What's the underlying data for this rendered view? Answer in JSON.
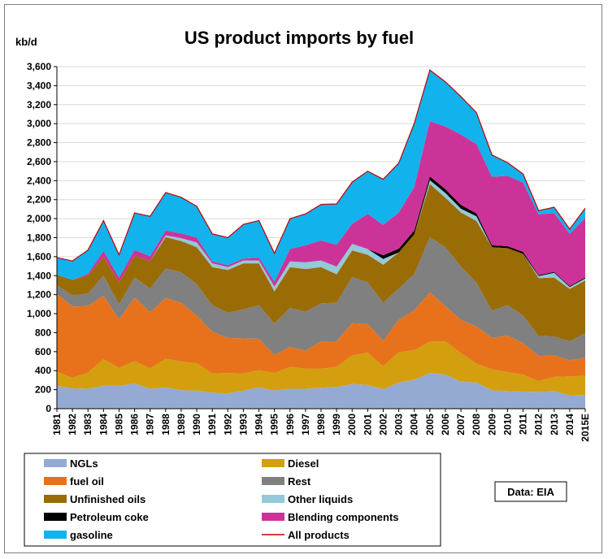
{
  "chart_data": {
    "type": "area",
    "title": "US product imports by fuel",
    "ylabel": "kb/d",
    "ylim": [
      0,
      3600
    ],
    "ytick_step": 200,
    "grid": true,
    "legend_position": "bottom",
    "source_note": "Data: EIA",
    "categories": [
      "1981",
      "1982",
      "1983",
      "1984",
      "1985",
      "1986",
      "1987",
      "1988",
      "1989",
      "1990",
      "1991",
      "1992",
      "1993",
      "1994",
      "1995",
      "1996",
      "1997",
      "1998",
      "1999",
      "2000",
      "2001",
      "2002",
      "2003",
      "2004",
      "2005",
      "2006",
      "2007",
      "2008",
      "2009",
      "2010",
      "2011",
      "2012",
      "2013",
      "2014",
      "2015E"
    ],
    "series": [
      {
        "name": "NGLs",
        "color": "#95aad3",
        "values": [
          240,
          215,
          210,
          240,
          240,
          265,
          210,
          225,
          195,
          190,
          170,
          160,
          190,
          225,
          190,
          210,
          210,
          220,
          230,
          260,
          250,
          205,
          275,
          305,
          375,
          360,
          285,
          275,
          195,
          185,
          180,
          175,
          185,
          140,
          145
        ]
      },
      {
        "name": "Diesel",
        "color": "#d39f0e",
        "values": [
          150,
          110,
          170,
          280,
          190,
          235,
          215,
          300,
          300,
          290,
          200,
          215,
          180,
          180,
          185,
          230,
          210,
          200,
          210,
          300,
          340,
          240,
          320,
          310,
          330,
          350,
          300,
          200,
          220,
          200,
          180,
          115,
          150,
          200,
          200
        ]
      },
      {
        "name": "fuel oil",
        "color": "#e8721c",
        "values": [
          820,
          750,
          700,
          670,
          510,
          670,
          590,
          640,
          620,
          500,
          440,
          370,
          370,
          330,
          190,
          210,
          190,
          290,
          270,
          340,
          300,
          270,
          340,
          420,
          520,
          370,
          350,
          390,
          330,
          385,
          330,
          265,
          225,
          170,
          190
        ]
      },
      {
        "name": "Rest",
        "color": "#808080",
        "values": [
          90,
          120,
          130,
          210,
          160,
          210,
          250,
          310,
          320,
          330,
          280,
          265,
          305,
          355,
          330,
          410,
          410,
          400,
          405,
          485,
          440,
          400,
          330,
          380,
          580,
          620,
          560,
          460,
          285,
          320,
          290,
          210,
          200,
          200,
          260
        ]
      },
      {
        "name": "Unfinished oils",
        "color": "#9a6c06",
        "values": [
          110,
          160,
          190,
          200,
          230,
          230,
          290,
          330,
          330,
          390,
          400,
          450,
          485,
          440,
          340,
          430,
          450,
          380,
          300,
          280,
          290,
          400,
          380,
          420,
          560,
          520,
          570,
          650,
          670,
          600,
          650,
          610,
          620,
          550,
          555
        ]
      },
      {
        "name": "Other liquids",
        "color": "#93c9d8",
        "values": [
          0,
          0,
          0,
          0,
          0,
          0,
          0,
          20,
          30,
          50,
          40,
          30,
          30,
          30,
          50,
          60,
          70,
          70,
          80,
          70,
          60,
          60,
          0,
          0,
          40,
          50,
          40,
          50,
          0,
          0,
          0,
          20,
          50,
          20,
          20
        ]
      },
      {
        "name": "Petroleum coke",
        "color": "#000000",
        "values": [
          0,
          0,
          0,
          0,
          0,
          0,
          0,
          0,
          0,
          0,
          0,
          0,
          0,
          0,
          0,
          0,
          0,
          0,
          0,
          0,
          0,
          40,
          40,
          40,
          40,
          40,
          40,
          30,
          20,
          20,
          20,
          10,
          10,
          10,
          10
        ]
      },
      {
        "name": "Blending components",
        "color": "#cc3399",
        "values": [
          0,
          0,
          20,
          60,
          50,
          60,
          50,
          50,
          50,
          50,
          20,
          20,
          20,
          30,
          50,
          130,
          180,
          210,
          230,
          210,
          370,
          320,
          380,
          460,
          580,
          660,
          740,
          730,
          720,
          740,
          730,
          640,
          620,
          550,
          630
        ]
      },
      {
        "name": "gasoline",
        "color": "#12b2ec",
        "values": [
          180,
          200,
          250,
          320,
          240,
          390,
          420,
          400,
          380,
          330,
          290,
          290,
          360,
          390,
          300,
          320,
          330,
          380,
          430,
          440,
          450,
          480,
          520,
          670,
          540,
          470,
          400,
          330,
          230,
          140,
          90,
          40,
          60,
          50,
          100
        ]
      }
    ],
    "total_series": {
      "name": "All products",
      "color": "#c00000",
      "values": [
        1590,
        1555,
        1670,
        1980,
        1620,
        2060,
        2025,
        2275,
        2225,
        2130,
        1840,
        1800,
        1940,
        1980,
        1635,
        2000,
        2050,
        2150,
        2155,
        2385,
        2500,
        2415,
        2585,
        3005,
        3565,
        3440,
        3285,
        3115,
        2670,
        2590,
        2470,
        2085,
        2120,
        1890,
        2110
      ]
    }
  }
}
